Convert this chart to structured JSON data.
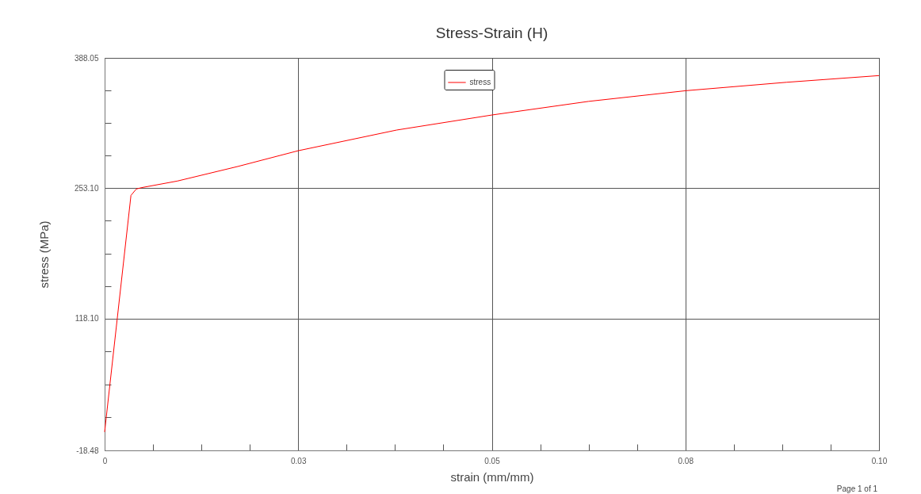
{
  "chart_data": {
    "type": "line",
    "title": "Stress-Strain (H)",
    "xlabel": "strain (mm/mm)",
    "ylabel": "stress (MPa)",
    "annotations": [
      "Page 1 of 1"
    ],
    "x": [
      0,
      0.0034,
      0.0041,
      0.0048,
      0.0094,
      0.0172,
      0.025,
      0.0377,
      0.0501,
      0.0625,
      0.0751,
      0.0881,
      0.1
    ],
    "series": [
      {
        "name": "stress",
        "color": "#ff0000",
        "values": [
          0.6,
          245.6,
          252.3,
          253.7,
          260.5,
          275.6,
          291.9,
          313.3,
          329.0,
          343.0,
          354.1,
          362.8,
          369.7
        ]
      }
    ],
    "xlim": [
      0,
      0.1
    ],
    "xticks": [
      0,
      {
        "value": 0.00625,
        "label": null
      },
      {
        "value": 0.0125,
        "label": null
      },
      {
        "value": 0.01875,
        "label": null
      },
      {
        "value": 0.025,
        "label": "0.03"
      },
      {
        "value": 0.03125,
        "label": null
      },
      {
        "value": 0.0375,
        "label": null
      },
      {
        "value": 0.04375,
        "label": null
      },
      {
        "value": 0.05,
        "label": "0.05"
      },
      {
        "value": 0.05625,
        "label": null
      },
      {
        "value": 0.0625,
        "label": null
      },
      {
        "value": 0.06875,
        "label": null
      },
      {
        "value": 0.075,
        "label": "0.08"
      },
      {
        "value": 0.08125,
        "label": null
      },
      {
        "value": 0.0875,
        "label": null
      },
      {
        "value": 0.09375,
        "label": null
      },
      {
        "value": 0.1,
        "label": "0.10"
      }
    ],
    "ylim": [
      -18.48,
      388.05
    ],
    "yticks": [
      {
        "value": -18.48,
        "label": "-18.48"
      },
      {
        "value": 15.66,
        "label": null
      },
      {
        "value": 49.81,
        "label": null
      },
      {
        "value": 83.96,
        "label": null
      },
      {
        "value": 118.1,
        "label": "118.10"
      },
      {
        "value": 151.85,
        "label": null
      },
      {
        "value": 185.6,
        "label": null
      },
      {
        "value": 219.35,
        "label": null
      },
      {
        "value": 253.1,
        "label": "253.10"
      },
      {
        "value": 286.84,
        "label": null
      },
      {
        "value": 320.57,
        "label": null
      },
      {
        "value": 354.31,
        "label": null
      },
      {
        "value": 388.05,
        "label": "388.05"
      }
    ],
    "grid": true,
    "legend": "top",
    "marker": "none",
    "line_style": "solid"
  }
}
